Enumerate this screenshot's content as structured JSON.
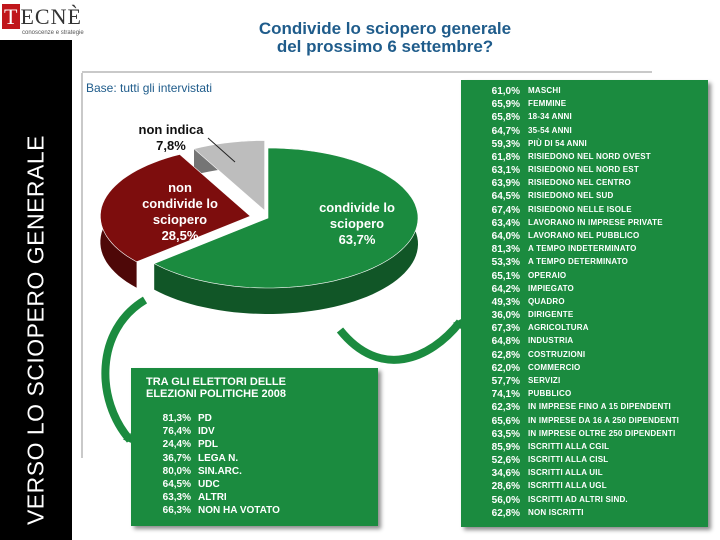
{
  "logo": {
    "initial": "T",
    "rest": "ECNÈ",
    "tagline": "conoscenze e strategie"
  },
  "sidebar": {
    "text": "VERSO LO SCIOPERO GENERALE"
  },
  "title": {
    "line1": "Condivide lo sciopero generale",
    "line2": "del prossimo 6 settembre?"
  },
  "subtitle": "Base: tutti gli intervistati",
  "chart_data": {
    "type": "pie",
    "title": "Condivide lo sciopero generale del prossimo 6 settembre?",
    "subtitle": "Base: tutti gli intervistati",
    "slices": [
      {
        "label": "condivide lo sciopero",
        "value": 63.7,
        "display": "63,7%",
        "color": "#1b8b3f"
      },
      {
        "label": "non condivide lo sciopero",
        "value": 28.5,
        "display": "28,5%",
        "color": "#7d0d0d"
      },
      {
        "label": "non indica",
        "value": 7.8,
        "display": "7,8%",
        "color": "#bdbdbd"
      }
    ]
  },
  "slice_labels": {
    "green_1": "condivide lo",
    "green_2": "sciopero",
    "green_3": "63,7%",
    "red_1": "non",
    "red_2": "condivide lo",
    "red_3": "sciopero",
    "red_4": "28,5%",
    "grey_1": "non indica",
    "grey_2": "7,8%"
  },
  "elections_box": {
    "heading_1": "TRA GLI ELETTORI DELLE",
    "heading_2": "ELEZIONI POLITICHE 2008",
    "rows": [
      {
        "value": "81,3%",
        "label": "PD"
      },
      {
        "value": "76,4%",
        "label": "IDV"
      },
      {
        "value": "24,4%",
        "label": "PDL"
      },
      {
        "value": "36,7%",
        "label": "LEGA N."
      },
      {
        "value": "80,0%",
        "label": "SIN.ARC."
      },
      {
        "value": "64,5%",
        "label": "UDC"
      },
      {
        "value": "63,3%",
        "label": "ALTRI"
      },
      {
        "value": "66,3%",
        "label": "NON HA VOTATO"
      }
    ]
  },
  "segments_box": {
    "rows": [
      {
        "value": "61,0%",
        "label": "MASCHI"
      },
      {
        "value": "65,9%",
        "label": "FEMMINE"
      },
      {
        "value": "65,8%",
        "label": "18-34 ANNI"
      },
      {
        "value": "64,7%",
        "label": "35-54 ANNI"
      },
      {
        "value": "59,3%",
        "label": "PIÙ DI 54 ANNI"
      },
      {
        "value": "61,8%",
        "label": "RISIEDONO NEL NORD OVEST"
      },
      {
        "value": "63,1%",
        "label": "RISIEDONO NEL NORD EST"
      },
      {
        "value": "63,9%",
        "label": "RISIEDONO NEL CENTRO"
      },
      {
        "value": "64,5%",
        "label": "RISIEDONO NEL SUD"
      },
      {
        "value": "67,4%",
        "label": "RISIEDONO NELLE ISOLE"
      },
      {
        "value": "63,4%",
        "label": "LAVORANO IN IMPRESE PRIVATE"
      },
      {
        "value": "64,0%",
        "label": "LAVORANO NEL PUBBLICO"
      },
      {
        "value": "81,3%",
        "label": "A TEMPO INDETERMINATO"
      },
      {
        "value": "53,3%",
        "label": "A TEMPO DETERMINATO"
      },
      {
        "value": "65,1%",
        "label": "OPERAIO"
      },
      {
        "value": "64,2%",
        "label": "IMPIEGATO"
      },
      {
        "value": "49,3%",
        "label": "QUADRO"
      },
      {
        "value": "36,0%",
        "label": "DIRIGENTE"
      },
      {
        "value": "67,3%",
        "label": "AGRICOLTURA"
      },
      {
        "value": "64,8%",
        "label": "INDUSTRIA"
      },
      {
        "value": "62,8%",
        "label": "COSTRUZIONI"
      },
      {
        "value": "62,0%",
        "label": "COMMERCIO"
      },
      {
        "value": "57,7%",
        "label": "SERVIZI"
      },
      {
        "value": "74,1%",
        "label": "PUBBLICO"
      },
      {
        "value": "62,3%",
        "label": "IN IMPRESE FINO A 15 DIPENDENTI"
      },
      {
        "value": "65,6%",
        "label": "IN IMPRESE DA 16 A 250 DIPENDENTI"
      },
      {
        "value": "63,5%",
        "label": "IN IMPRESE OLTRE 250 DIPENDENTI"
      },
      {
        "value": "85,9%",
        "label": "ISCRITTI ALLA CGIL"
      },
      {
        "value": "52,6%",
        "label": "ISCRITTI ALLA CISL"
      },
      {
        "value": "34,6%",
        "label": "ISCRITTI ALLA UIL"
      },
      {
        "value": "28,6%",
        "label": "ISCRITTI ALLA UGL"
      },
      {
        "value": "56,0%",
        "label": "ISCRITTI AD ALTRI SIND."
      },
      {
        "value": "62,8%",
        "label": "NON ISCRITTI"
      }
    ]
  }
}
